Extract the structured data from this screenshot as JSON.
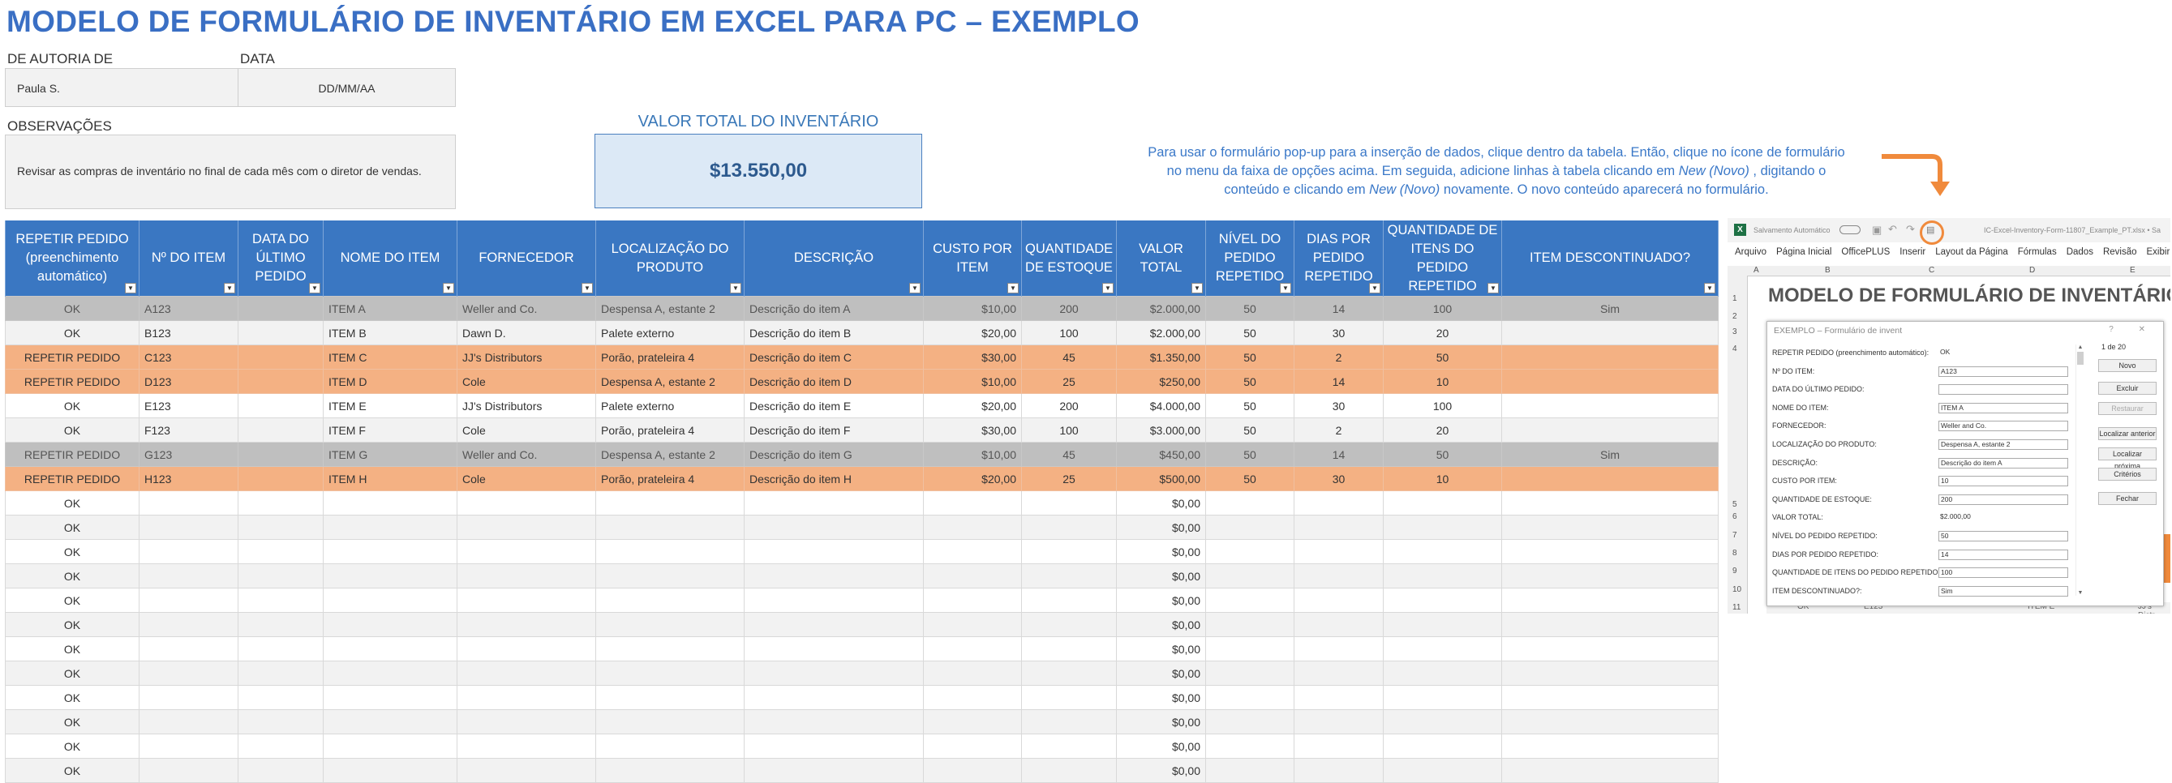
{
  "title": "MODELO DE FORMULÁRIO DE INVENTÁRIO EM EXCEL PARA PC – EXEMPLO",
  "author": {
    "label": "DE AUTORIA DE",
    "value": "Paula S."
  },
  "date": {
    "label": "DATA",
    "value": "DD/MM/AA"
  },
  "notes": {
    "label": "OBSERVAÇÕES",
    "value": "Revisar as compras de inventário no final de cada mês com o diretor de vendas."
  },
  "total": {
    "label": "VALOR TOTAL DO INVENTÁRIO",
    "value": "$13.550,00"
  },
  "instructions": {
    "line1": "Para usar o formulário pop-up para a inserção de dados, clique dentro da tabela. Então, clique no ícone de formulário",
    "line2a": "no menu da faixa de opções acima.  Em seguida, adicione linhas à tabela clicando em ",
    "line2b": "New (Novo)",
    "line2c": " , digitando o",
    "line3a": "conteúdo e clicando em ",
    "line3b": "New (Novo)",
    "line3c": "  novamente. O novo conteúdo aparecerá no formulário."
  },
  "table": {
    "headers": [
      "REPETIR PEDIDO (preenchimento automático)",
      "Nº DO ITEM",
      "DATA DO ÚLTIMO PEDIDO",
      "NOME DO ITEM",
      "FORNECEDOR",
      "LOCALIZAÇÃO DO PRODUTO",
      "DESCRIÇÃO",
      "CUSTO POR ITEM",
      "QUANTIDADE DE ESTOQUE",
      "VALOR TOTAL",
      "NÍVEL DO PEDIDO REPETIDO",
      "DIAS POR PEDIDO REPETIDO",
      "QUANTIDADE DE ITENS DO PEDIDO REPETIDO",
      "ITEM DESCONTINUADO?"
    ],
    "rows": [
      {
        "style": "grey",
        "cells": [
          "OK",
          "A123",
          "",
          "ITEM A",
          "Weller and Co.",
          "Despensa A, estante 2",
          "Descrição do item A",
          "$10,00",
          "200",
          "$2.000,00",
          "50",
          "14",
          "100",
          "Sim"
        ]
      },
      {
        "style": "light",
        "cells": [
          "OK",
          "B123",
          "",
          "ITEM B",
          "Dawn D.",
          "Palete externo",
          "Descrição do item B",
          "$20,00",
          "100",
          "$2.000,00",
          "50",
          "30",
          "20",
          ""
        ]
      },
      {
        "style": "orange",
        "cells": [
          "REPETIR PEDIDO",
          "C123",
          "",
          "ITEM C",
          "JJ's Distributors",
          "Porão, prateleira 4",
          "Descrição do item C",
          "$30,00",
          "45",
          "$1.350,00",
          "50",
          "2",
          "50",
          ""
        ]
      },
      {
        "style": "orange",
        "cells": [
          "REPETIR PEDIDO",
          "D123",
          "",
          "ITEM D",
          "Cole",
          "Despensa A, estante 2",
          "Descrição do item D",
          "$10,00",
          "25",
          "$250,00",
          "50",
          "14",
          "10",
          ""
        ]
      },
      {
        "style": "white",
        "cells": [
          "OK",
          "E123",
          "",
          "ITEM E",
          "JJ's Distributors",
          "Palete externo",
          "Descrição do item E",
          "$20,00",
          "200",
          "$4.000,00",
          "50",
          "30",
          "100",
          ""
        ]
      },
      {
        "style": "light",
        "cells": [
          "OK",
          "F123",
          "",
          "ITEM F",
          "Cole",
          "Porão, prateleira 4",
          "Descrição do item F",
          "$30,00",
          "100",
          "$3.000,00",
          "50",
          "2",
          "20",
          ""
        ]
      },
      {
        "style": "grey",
        "cells": [
          "REPETIR PEDIDO",
          "G123",
          "",
          "ITEM G",
          "Weller and Co.",
          "Despensa A, estante 2",
          "Descrição do item G",
          "$10,00",
          "45",
          "$450,00",
          "50",
          "14",
          "50",
          "Sim"
        ]
      },
      {
        "style": "orange",
        "cells": [
          "REPETIR PEDIDO",
          "H123",
          "",
          "ITEM H",
          "Cole",
          "Porão, prateleira 4",
          "Descrição do item H",
          "$20,00",
          "25",
          "$500,00",
          "50",
          "30",
          "10",
          ""
        ]
      },
      {
        "style": "white",
        "cells": [
          "OK",
          "",
          "",
          "",
          "",
          "",
          "",
          "",
          "",
          "$0,00",
          "",
          "",
          "",
          ""
        ]
      },
      {
        "style": "light",
        "cells": [
          "OK",
          "",
          "",
          "",
          "",
          "",
          "",
          "",
          "",
          "$0,00",
          "",
          "",
          "",
          ""
        ]
      },
      {
        "style": "white",
        "cells": [
          "OK",
          "",
          "",
          "",
          "",
          "",
          "",
          "",
          "",
          "$0,00",
          "",
          "",
          "",
          ""
        ]
      },
      {
        "style": "light",
        "cells": [
          "OK",
          "",
          "",
          "",
          "",
          "",
          "",
          "",
          "",
          "$0,00",
          "",
          "",
          "",
          ""
        ]
      },
      {
        "style": "white",
        "cells": [
          "OK",
          "",
          "",
          "",
          "",
          "",
          "",
          "",
          "",
          "$0,00",
          "",
          "",
          "",
          ""
        ]
      },
      {
        "style": "light",
        "cells": [
          "OK",
          "",
          "",
          "",
          "",
          "",
          "",
          "",
          "",
          "$0,00",
          "",
          "",
          "",
          ""
        ]
      },
      {
        "style": "white",
        "cells": [
          "OK",
          "",
          "",
          "",
          "",
          "",
          "",
          "",
          "",
          "$0,00",
          "",
          "",
          "",
          ""
        ]
      },
      {
        "style": "light",
        "cells": [
          "OK",
          "",
          "",
          "",
          "",
          "",
          "",
          "",
          "",
          "$0,00",
          "",
          "",
          "",
          ""
        ]
      },
      {
        "style": "white",
        "cells": [
          "OK",
          "",
          "",
          "",
          "",
          "",
          "",
          "",
          "",
          "$0,00",
          "",
          "",
          "",
          ""
        ]
      },
      {
        "style": "light",
        "cells": [
          "OK",
          "",
          "",
          "",
          "",
          "",
          "",
          "",
          "",
          "$0,00",
          "",
          "",
          "",
          ""
        ]
      },
      {
        "style": "white",
        "cells": [
          "OK",
          "",
          "",
          "",
          "",
          "",
          "",
          "",
          "",
          "$0,00",
          "",
          "",
          "",
          ""
        ]
      },
      {
        "style": "light",
        "cells": [
          "OK",
          "",
          "",
          "",
          "",
          "",
          "",
          "",
          "",
          "$0,00",
          "",
          "",
          "",
          ""
        ]
      }
    ]
  },
  "inset": {
    "autosave": "Salvamento Automático",
    "filename": "IC-Excel-Inventory-Form-11807_Example_PT.xlsx • Sa",
    "menu": [
      "Arquivo",
      "Página Inicial",
      "OfficePLUS",
      "Inserir",
      "Layout da Página",
      "Fórmulas",
      "Dados",
      "Revisão",
      "Exibir"
    ],
    "columns": [
      "A",
      "B",
      "C",
      "D",
      "E"
    ],
    "row_numbers": [
      "1",
      "2",
      "3",
      "4",
      "5",
      "6",
      "7",
      "8",
      "9",
      "10",
      "11"
    ],
    "sheet_title": "MODELO DE FORMULÁRIO DE INVENTÁRIO E",
    "form_title": "EXEMPLO – Formulário de invent",
    "form_controls": "? ✕",
    "record": "1 de 20",
    "fields": [
      {
        "label": "REPETIR PEDIDO (preenchimento automático):",
        "value": "OK",
        "plain": true
      },
      {
        "label": "Nº DO ITEM:",
        "value": "A123"
      },
      {
        "label": "DATA DO ÚLTIMO PEDIDO:",
        "value": ""
      },
      {
        "label": "NOME DO ITEM:",
        "value": "ITEM A"
      },
      {
        "label": "FORNECEDOR:",
        "value": "Weller and Co."
      },
      {
        "label": "LOCALIZAÇÃO DO PRODUTO:",
        "value": "Despensa A, estante 2"
      },
      {
        "label": "DESCRIÇÃO:",
        "value": "Descrição do item A"
      },
      {
        "label": "CUSTO POR ITEM:",
        "value": "10"
      },
      {
        "label": "QUANTIDADE DE ESTOQUE:",
        "value": "200"
      },
      {
        "label": "VALOR TOTAL:",
        "value": "$2.000,00",
        "plain": true
      },
      {
        "label": "NÍVEL DO PEDIDO REPETIDO:",
        "value": "50"
      },
      {
        "label": "DIAS POR PEDIDO REPETIDO:",
        "value": "14"
      },
      {
        "label": "QUANTIDADE DE ITENS DO PEDIDO REPETIDO:",
        "value": "100"
      },
      {
        "label": "ITEM DESCONTINUADO?:",
        "value": "Sim"
      }
    ],
    "buttons": [
      {
        "label": "Novo",
        "disabled": false
      },
      {
        "label": "Excluir",
        "disabled": false
      },
      {
        "label": "Restaurar",
        "disabled": true
      },
      {
        "label": "Localizar anterior",
        "disabled": false
      },
      {
        "label": "Localizar próxima",
        "disabled": false
      },
      {
        "label": "Critérios",
        "disabled": false
      },
      {
        "label": "Fechar",
        "disabled": false
      }
    ],
    "behind_row": [
      "OK",
      "E123",
      "ITEM E",
      "JJ's Distr"
    ]
  },
  "colors": {
    "header_blue": "#3a77c2",
    "title_blue": "#3a6fc4",
    "orange": "#f4b183",
    "grey": "#bfbfbf",
    "callout_orange": "#f08a3c"
  }
}
